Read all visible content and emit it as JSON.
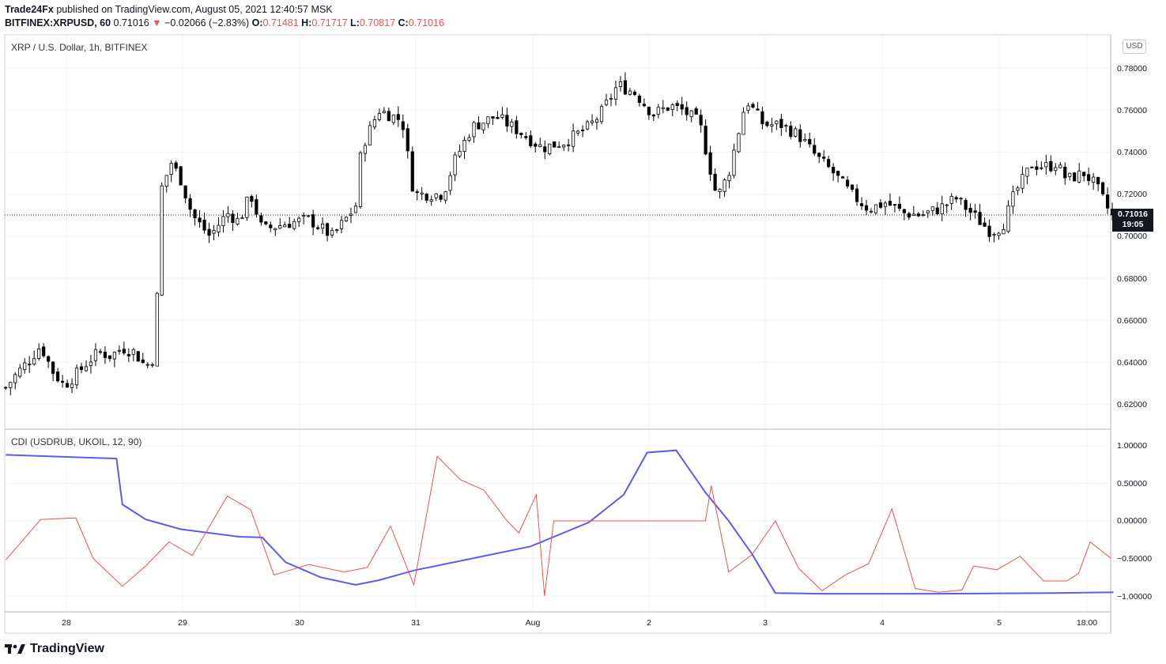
{
  "header": {
    "publisher": "Trade24Fx",
    "published_text": " published on TradingView.com, August 05, 2021 12:40:57 MSK",
    "symbol": "BITFINEX:XRPUSD, 60",
    "last": "0.71016",
    "arrow": "▼",
    "change": "−0.02066 (−2.83%)",
    "o_label": "O:",
    "o_val": "0.71481",
    "h_label": "H:",
    "h_val": "0.71717",
    "l_label": "L:",
    "l_val": "0.70817",
    "c_label": "C:",
    "c_val": "0.71016"
  },
  "main_pane": {
    "title": "XRP / U.S. Dollar, 1h, BITFINEX",
    "currency_badge": "USD",
    "price_tag_value": "0.71016",
    "price_tag_countdown": "19:05",
    "y_ticks": [
      "0.78000",
      "0.76000",
      "0.74000",
      "0.72000",
      "0.70000",
      "0.68000",
      "0.66000",
      "0.64000",
      "0.62000"
    ]
  },
  "indicator_pane": {
    "title": "CDI (USDRUB, UKOIL, 12, 90)",
    "y_ticks": [
      "1.00000",
      "0.50000",
      "0.00000",
      "−0.50000",
      "−1.00000"
    ]
  },
  "x_axis": {
    "ticks": [
      "28",
      "29",
      "30",
      "31",
      "Aug",
      "2",
      "3",
      "4",
      "5",
      "18:00"
    ]
  },
  "footer": {
    "brand": "TradingView"
  },
  "colors": {
    "up_body": "#ffffff",
    "down_body": "#000000",
    "cdi_red": "#ef5350",
    "cdi_blue": "#5b5bf0",
    "grid": "#f0f3fa",
    "price_tag_bg": "#131722"
  },
  "chart_data": [
    {
      "type": "candlestick",
      "title": "XRP / U.S. Dollar, 1h, BITFINEX",
      "x_ticks": [
        "28",
        "29",
        "30",
        "31",
        "Aug",
        "2",
        "3",
        "4",
        "5",
        "18:00"
      ],
      "y_range": [
        0.61,
        0.785
      ],
      "last_price": 0.71016,
      "close_path": [
        {
          "x": 0.0,
          "close": 0.628
        },
        {
          "x": 0.1,
          "close": 0.635
        },
        {
          "x": 0.2,
          "close": 0.641
        },
        {
          "x": 0.3,
          "close": 0.648
        },
        {
          "x": 0.4,
          "close": 0.636
        },
        {
          "x": 0.5,
          "close": 0.629
        },
        {
          "x": 0.6,
          "close": 0.634
        },
        {
          "x": 0.7,
          "close": 0.64
        },
        {
          "x": 0.8,
          "close": 0.645
        },
        {
          "x": 0.9,
          "close": 0.643
        },
        {
          "x": 1.0,
          "close": 0.647
        },
        {
          "x": 1.1,
          "close": 0.645
        },
        {
          "x": 1.2,
          "close": 0.638
        },
        {
          "x": 1.28,
          "close": 0.643
        },
        {
          "x": 1.33,
          "close": 0.722
        },
        {
          "x": 1.42,
          "close": 0.735
        },
        {
          "x": 1.5,
          "close": 0.727
        },
        {
          "x": 1.6,
          "close": 0.71
        },
        {
          "x": 1.75,
          "close": 0.7
        },
        {
          "x": 1.9,
          "close": 0.711
        },
        {
          "x": 2.0,
          "close": 0.707
        },
        {
          "x": 2.1,
          "close": 0.72
        },
        {
          "x": 2.2,
          "close": 0.703
        },
        {
          "x": 2.4,
          "close": 0.706
        },
        {
          "x": 2.6,
          "close": 0.708
        },
        {
          "x": 2.8,
          "close": 0.7
        },
        {
          "x": 3.0,
          "close": 0.714
        },
        {
          "x": 3.05,
          "close": 0.742
        },
        {
          "x": 3.2,
          "close": 0.76
        },
        {
          "x": 3.4,
          "close": 0.755
        },
        {
          "x": 3.5,
          "close": 0.72
        },
        {
          "x": 3.6,
          "close": 0.72
        },
        {
          "x": 3.75,
          "close": 0.72
        },
        {
          "x": 3.85,
          "close": 0.736
        },
        {
          "x": 4.0,
          "close": 0.752
        },
        {
          "x": 4.2,
          "close": 0.757
        },
        {
          "x": 4.4,
          "close": 0.75
        },
        {
          "x": 4.6,
          "close": 0.742
        },
        {
          "x": 4.8,
          "close": 0.745
        },
        {
          "x": 5.0,
          "close": 0.752
        },
        {
          "x": 5.1,
          "close": 0.758
        },
        {
          "x": 5.25,
          "close": 0.772
        },
        {
          "x": 5.4,
          "close": 0.768
        },
        {
          "x": 5.55,
          "close": 0.758
        },
        {
          "x": 5.7,
          "close": 0.762
        },
        {
          "x": 5.8,
          "close": 0.76
        },
        {
          "x": 5.95,
          "close": 0.754
        },
        {
          "x": 6.0,
          "close": 0.742
        },
        {
          "x": 6.1,
          "close": 0.718
        },
        {
          "x": 6.2,
          "close": 0.73
        },
        {
          "x": 6.35,
          "close": 0.765
        },
        {
          "x": 6.5,
          "close": 0.753
        },
        {
          "x": 6.65,
          "close": 0.753
        },
        {
          "x": 6.8,
          "close": 0.748
        },
        {
          "x": 6.95,
          "close": 0.738
        },
        {
          "x": 7.1,
          "close": 0.73
        },
        {
          "x": 7.25,
          "close": 0.72
        },
        {
          "x": 7.4,
          "close": 0.713
        },
        {
          "x": 7.55,
          "close": 0.716
        },
        {
          "x": 7.7,
          "close": 0.711
        },
        {
          "x": 7.85,
          "close": 0.71
        },
        {
          "x": 8.0,
          "close": 0.713
        },
        {
          "x": 8.15,
          "close": 0.718
        },
        {
          "x": 8.3,
          "close": 0.71
        },
        {
          "x": 8.45,
          "close": 0.702
        },
        {
          "x": 8.55,
          "close": 0.705
        },
        {
          "x": 8.65,
          "close": 0.72
        },
        {
          "x": 8.8,
          "close": 0.734
        },
        {
          "x": 8.95,
          "close": 0.733
        },
        {
          "x": 9.0,
          "close": 0.735
        },
        {
          "x": 9.1,
          "close": 0.727
        },
        {
          "x": 9.25,
          "close": 0.73
        },
        {
          "x": 9.35,
          "close": 0.724
        },
        {
          "x": 9.48,
          "close": 0.71
        }
      ]
    },
    {
      "type": "line",
      "title": "CDI (USDRUB, UKOIL, 12, 90)",
      "y_range": [
        -1.1,
        1.1
      ],
      "series": [
        {
          "name": "",
          "color": "#5b5bf0",
          "points": [
            [
              0.0,
              0.88
            ],
            [
              0.95,
              0.83
            ],
            [
              1.0,
              0.22
            ],
            [
              1.2,
              0.02
            ],
            [
              1.5,
              -0.11
            ],
            [
              2.0,
              -0.21
            ],
            [
              2.2,
              -0.22
            ],
            [
              2.4,
              -0.55
            ],
            [
              2.7,
              -0.75
            ],
            [
              3.0,
              -0.85
            ],
            [
              3.2,
              -0.79
            ],
            [
              3.5,
              -0.66
            ],
            [
              4.0,
              -0.5
            ],
            [
              4.5,
              -0.34
            ],
            [
              5.0,
              -0.02
            ],
            [
              5.3,
              0.35
            ],
            [
              5.5,
              0.91
            ],
            [
              5.75,
              0.94
            ],
            [
              6.0,
              0.38
            ],
            [
              6.2,
              0.0
            ],
            [
              6.4,
              -0.44
            ],
            [
              6.6,
              -0.96
            ],
            [
              7.0,
              -0.97
            ],
            [
              8.0,
              -0.97
            ],
            [
              9.0,
              -0.96
            ],
            [
              9.5,
              -0.95
            ]
          ]
        },
        {
          "name": "",
          "color": "#ef5350",
          "points": [
            [
              0.0,
              -0.52
            ],
            [
              0.3,
              0.02
            ],
            [
              0.6,
              0.04
            ],
            [
              0.75,
              -0.5
            ],
            [
              1.0,
              -0.87
            ],
            [
              1.2,
              -0.6
            ],
            [
              1.4,
              -0.28
            ],
            [
              1.6,
              -0.46
            ],
            [
              1.9,
              0.33
            ],
            [
              2.1,
              0.15
            ],
            [
              2.3,
              -0.72
            ],
            [
              2.6,
              -0.58
            ],
            [
              2.9,
              -0.68
            ],
            [
              3.1,
              -0.62
            ],
            [
              3.3,
              -0.07
            ],
            [
              3.5,
              -0.85
            ],
            [
              3.7,
              0.86
            ],
            [
              3.9,
              0.55
            ],
            [
              4.1,
              0.41
            ],
            [
              4.3,
              0.0
            ],
            [
              4.4,
              -0.16
            ],
            [
              4.55,
              0.35
            ],
            [
              4.62,
              -1.0
            ],
            [
              4.7,
              0.0
            ],
            [
              5.0,
              0.0
            ],
            [
              5.5,
              0.0
            ],
            [
              6.0,
              0.0
            ],
            [
              6.05,
              0.47
            ],
            [
              6.2,
              -0.68
            ],
            [
              6.4,
              -0.45
            ],
            [
              6.6,
              0.0
            ],
            [
              6.8,
              -0.63
            ],
            [
              7.0,
              -0.93
            ],
            [
              7.2,
              -0.72
            ],
            [
              7.4,
              -0.57
            ],
            [
              7.6,
              0.16
            ],
            [
              7.8,
              -0.9
            ],
            [
              8.0,
              -0.95
            ],
            [
              8.2,
              -0.92
            ],
            [
              8.3,
              -0.6
            ],
            [
              8.5,
              -0.65
            ],
            [
              8.7,
              -0.47
            ],
            [
              8.9,
              -0.8
            ],
            [
              9.1,
              -0.8
            ],
            [
              9.2,
              -0.7
            ],
            [
              9.3,
              -0.28
            ],
            [
              9.48,
              -0.5
            ]
          ]
        }
      ]
    }
  ]
}
